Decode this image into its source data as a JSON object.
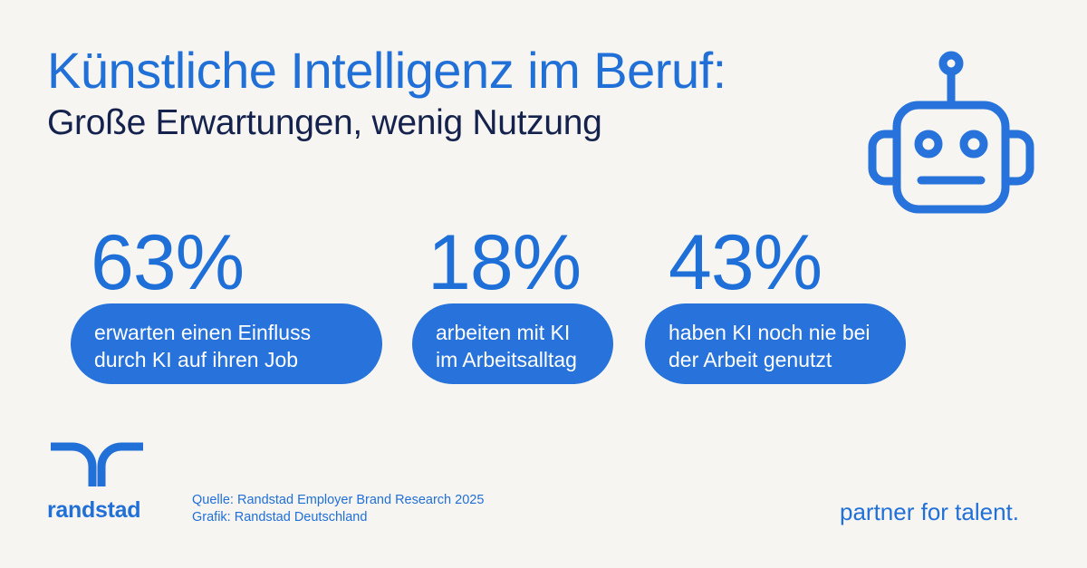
{
  "header": {
    "title": "Künstliche Intelligenz im Beruf:",
    "subtitle": "Große Erwartungen, wenig Nutzung"
  },
  "icons": {
    "robot": "robot-icon",
    "logo": "randstad-logo-icon"
  },
  "stats": [
    {
      "value": "63%",
      "line1": "erwarten einen Einfluss",
      "line2": "durch KI auf ihren Job"
    },
    {
      "value": "18%",
      "line1": "arbeiten mit KI",
      "line2": "im Arbeitsalltag"
    },
    {
      "value": "43%",
      "line1": "haben KI noch nie bei",
      "line2": "der Arbeit genutzt"
    }
  ],
  "footer": {
    "brand": "randstad",
    "source_line1": "Quelle: Randstad Employer Brand Research 2025",
    "source_line2": "Grafik: Randstad Deutschland",
    "tagline": "partner for talent."
  },
  "colors": {
    "accent": "#2170d8",
    "pill": "#2773db",
    "dark": "#14224d",
    "background": "#f6f5f1"
  }
}
